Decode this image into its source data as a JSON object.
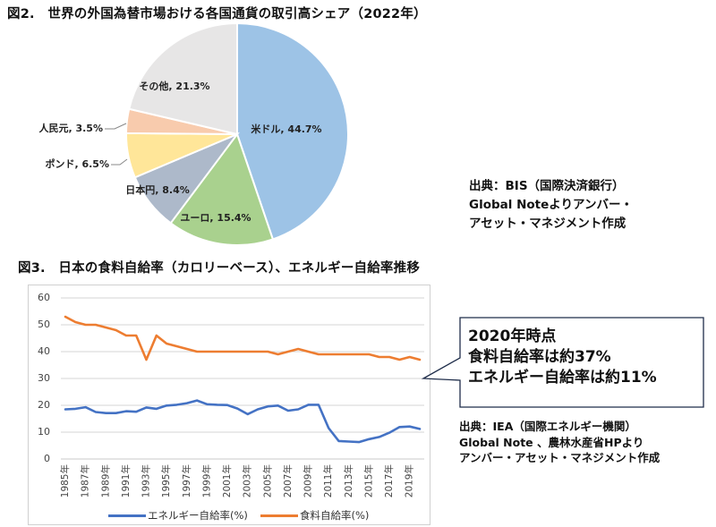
{
  "figure2": {
    "title": "図2.　世界の外国為替市場おける各国通貨の取引高シェア（2022年）",
    "source_lines": [
      "出典：BIS（国際決済銀行）",
      "Global Noteよりアンバー・",
      "アセット・マネジメント作成"
    ]
  },
  "figure3": {
    "title": "図3.　日本の食料自給率（カロリーベース）、エネルギー自給率推移",
    "callout_lines": [
      "2020年時点",
      "食料自給率は約37%",
      "エネルギー自給率は約11%"
    ],
    "source_lines": [
      "出典：IEA（国際エネルギー機関）",
      "Global Note 、農林水産省HPより",
      "アンバー・アセット・マネジメント作成"
    ]
  },
  "chart_data": [
    {
      "type": "pie",
      "title": "世界の外国為替市場おける各国通貨の取引高シェア（2022年）",
      "categories": [
        "米ドル",
        "ユーロ",
        "日本円",
        "ポンド",
        "人民元",
        "その他"
      ],
      "values": [
        44.7,
        15.4,
        8.4,
        6.5,
        3.5,
        21.3
      ],
      "labels": [
        "米ドル, 44.7%",
        "ユーロ, 15.4%",
        "日本円, 8.4%",
        "ポンド, 6.5%",
        "人民元, 3.5%",
        "その他, 21.3%"
      ],
      "colors": [
        "#9dc3e6",
        "#a9d18e",
        "#adb9ca",
        "#ffe699",
        "#f8cbad",
        "#e7e6e6"
      ],
      "unit": "%"
    },
    {
      "type": "line",
      "title": "日本の食料自給率（カロリーベース）、エネルギー自給率推移",
      "x": [
        1985,
        1986,
        1987,
        1988,
        1989,
        1990,
        1991,
        1992,
        1993,
        1994,
        1995,
        1996,
        1997,
        1998,
        1999,
        2000,
        2001,
        2002,
        2003,
        2004,
        2005,
        2006,
        2007,
        2008,
        2009,
        2010,
        2011,
        2012,
        2013,
        2014,
        2015,
        2016,
        2017,
        2018,
        2019,
        2020
      ],
      "x_tick_labels": [
        "1985年",
        "1987年",
        "1989年",
        "1991年",
        "1993年",
        "1995年",
        "1997年",
        "1999年",
        "2001年",
        "2003年",
        "2005年",
        "2007年",
        "2009年",
        "2011年",
        "2013年",
        "2015年",
        "2017年",
        "2019年"
      ],
      "y_ticks": [
        0,
        10,
        20,
        30,
        40,
        50,
        60
      ],
      "ylim": [
        0,
        60
      ],
      "grid": true,
      "legend_position": "bottom",
      "series": [
        {
          "name": "エネルギー自給率(%)",
          "color": "#4472c4",
          "values": [
            18.5,
            18.7,
            19.3,
            17.5,
            17.1,
            17.1,
            17.8,
            17.6,
            19.2,
            18.7,
            19.9,
            20.2,
            20.8,
            21.8,
            20.4,
            20.2,
            20.1,
            18.8,
            16.7,
            18.5,
            19.6,
            19.9,
            18.0,
            18.5,
            20.2,
            20.2,
            11.5,
            6.7,
            6.5,
            6.3,
            7.4,
            8.2,
            9.8,
            11.9,
            12.1,
            11.2
          ]
        },
        {
          "name": "食料自給率(%)",
          "color": "#ed7d31",
          "values": [
            53,
            51,
            50,
            50,
            49,
            48,
            46,
            46,
            37,
            46,
            43,
            42,
            41,
            40,
            40,
            40,
            40,
            40,
            40,
            40,
            40,
            39,
            40,
            41,
            40,
            39,
            39,
            39,
            39,
            39,
            39,
            38,
            38,
            37,
            38,
            37
          ]
        }
      ]
    }
  ]
}
